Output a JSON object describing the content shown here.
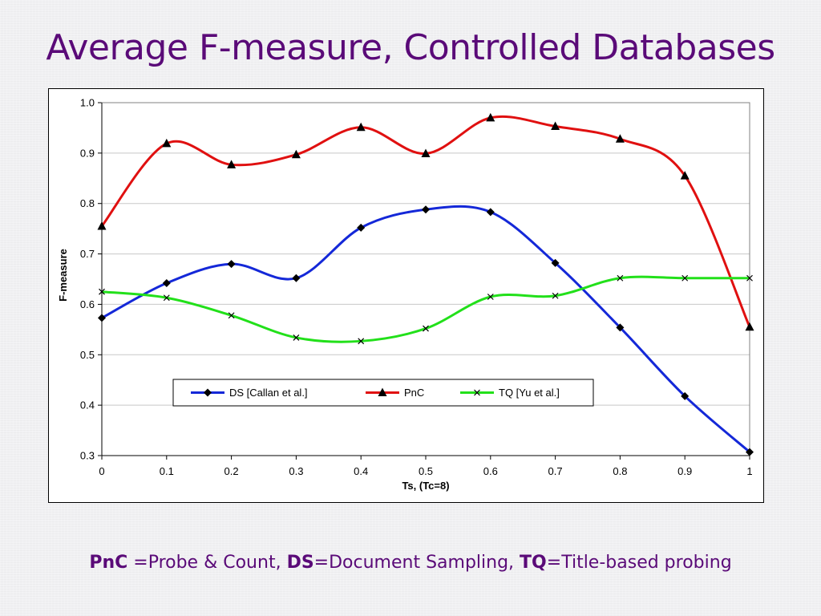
{
  "slide": {
    "title": "Average F-measure, Controlled Databases",
    "footnote": [
      {
        "abbr": "PnC",
        "text": " =Probe & Count,  "
      },
      {
        "abbr": "DS",
        "text": "=Document Sampling,  "
      },
      {
        "abbr": "TQ",
        "text": "=Title-based probing"
      }
    ]
  },
  "colors": {
    "title": "#5a0a78",
    "ds": "#1428d8",
    "pnc": "#e01010",
    "tq": "#22e01a",
    "gridline": "#c8c8c8"
  },
  "chart_data": {
    "type": "line",
    "title": "",
    "xlabel": "Ts, (Tc=8)",
    "ylabel": "F-measure",
    "x": [
      0,
      0.1,
      0.2,
      0.3,
      0.4,
      0.5,
      0.6,
      0.7,
      0.8,
      0.9,
      1
    ],
    "x_tick_labels": [
      "0",
      "0.1",
      "0.2",
      "0.3",
      "0.4",
      "0.5",
      "0.6",
      "0.7",
      "0.8",
      "0.9",
      "1"
    ],
    "ylim": [
      0.3,
      1.0
    ],
    "y_ticks": [
      0.3,
      0.4,
      0.5,
      0.6,
      0.7,
      0.8,
      0.9,
      1.0
    ],
    "y_tick_labels": [
      "0.3",
      "0.4",
      "0.5",
      "0.6",
      "0.7",
      "0.8",
      "0.9",
      "1.0"
    ],
    "grid": "horizontal",
    "legend_position": "lower-center",
    "series": [
      {
        "key": "ds",
        "name": "DS [Callan et al.]",
        "marker": "diamond",
        "values": [
          0.573,
          0.642,
          0.68,
          0.652,
          0.752,
          0.788,
          0.783,
          0.682,
          0.554,
          0.418,
          0.307
        ]
      },
      {
        "key": "pnc",
        "name": "PnC",
        "marker": "triangle",
        "values": [
          0.755,
          0.919,
          0.877,
          0.897,
          0.951,
          0.899,
          0.97,
          0.953,
          0.928,
          0.855,
          0.555
        ]
      },
      {
        "key": "tq",
        "name": "TQ [Yu et al.]",
        "marker": "x",
        "values": [
          0.625,
          0.613,
          0.578,
          0.534,
          0.527,
          0.552,
          0.615,
          0.617,
          0.652,
          0.652,
          0.652
        ]
      }
    ]
  }
}
